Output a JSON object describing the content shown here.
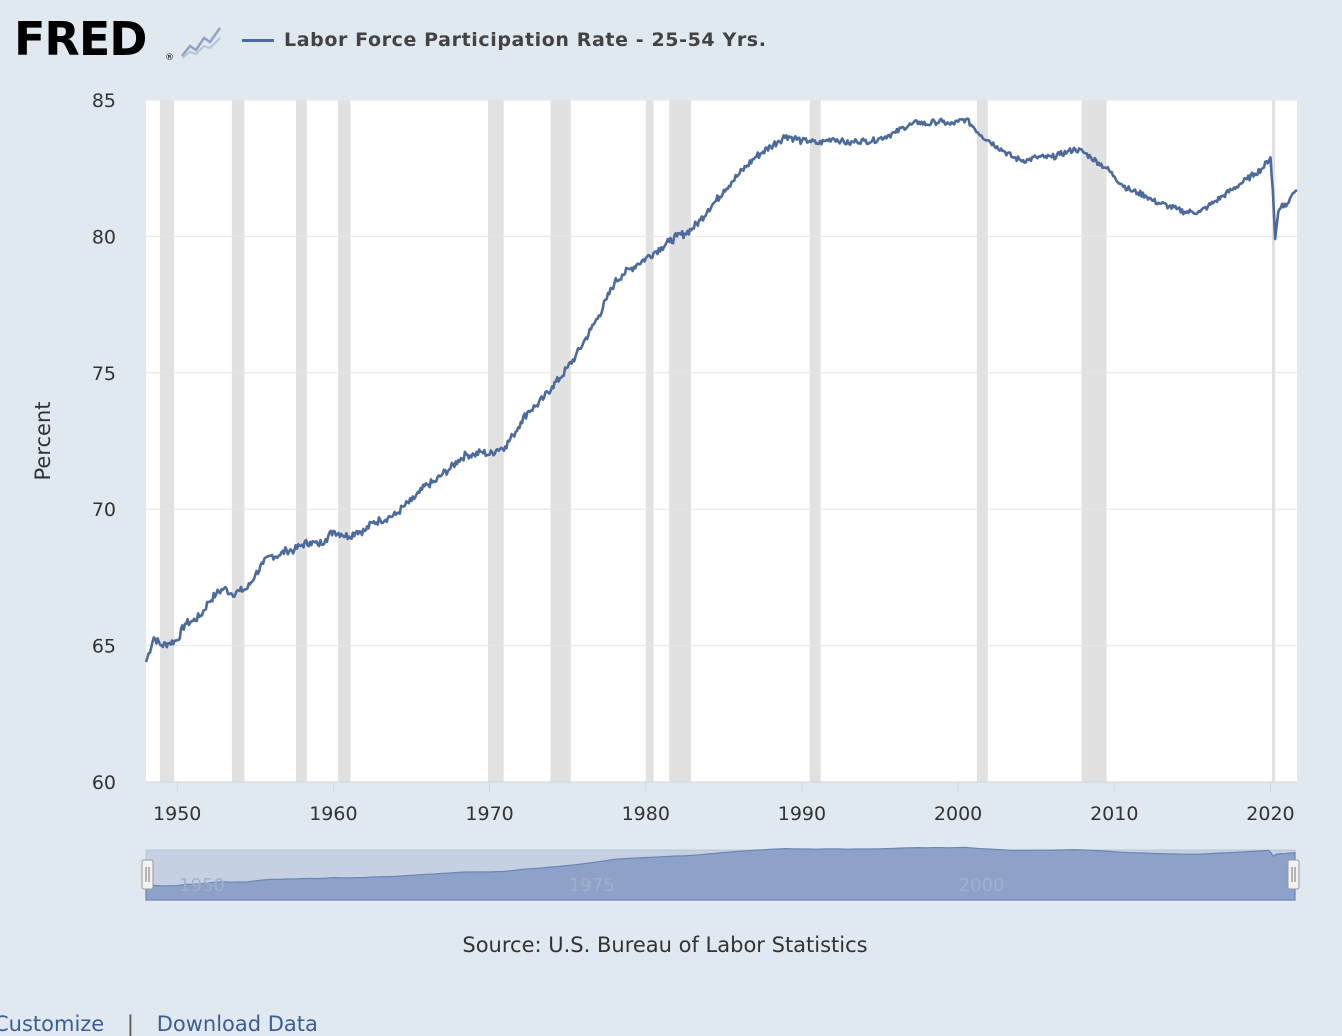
{
  "header": {
    "logo_text": "FRED",
    "logo_reg": "®",
    "logo_icon": "line-chart-icon",
    "legend_label": "Labor Force Participation Rate - 25-54 Yrs.",
    "legend_color": "#4c6b9c"
  },
  "source": "Source: U.S. Bureau of Labor Statistics",
  "footer": {
    "customize": "Customize",
    "separator": "|",
    "download": "Download Data"
  },
  "navigator": {
    "tick_labels": [
      "1950",
      "1975",
      "2000"
    ],
    "handle_glyph": "||"
  },
  "chart_data": {
    "type": "line",
    "title": "",
    "xlabel": "",
    "ylabel": "Percent",
    "ylim": [
      60,
      85
    ],
    "xlim": [
      1948,
      2021.7
    ],
    "y_ticks": [
      60,
      65,
      70,
      75,
      80,
      85
    ],
    "x_ticks": [
      1950,
      1960,
      1970,
      1980,
      1990,
      2000,
      2010,
      2020
    ],
    "grid": true,
    "legend_position": "top-left",
    "line_color": "#4c6b9c",
    "recession_color": "#e1e1e1",
    "recessions": [
      [
        1948.9,
        1949.8
      ],
      [
        1953.5,
        1954.3
      ],
      [
        1957.6,
        1958.3
      ],
      [
        1960.3,
        1961.1
      ],
      [
        1969.9,
        1970.9
      ],
      [
        1973.9,
        1975.2
      ],
      [
        1980.0,
        1980.5
      ],
      [
        1981.5,
        1982.9
      ],
      [
        1990.5,
        1991.2
      ],
      [
        2001.2,
        2001.9
      ],
      [
        2007.9,
        2009.5
      ],
      [
        2020.1,
        2020.3
      ]
    ],
    "series": [
      {
        "name": "Labor Force Participation Rate - 25-54 Yrs.",
        "x": [
          1948.0,
          1948.5,
          1949.0,
          1949.5,
          1950.0,
          1950.5,
          1951.0,
          1951.5,
          1952.0,
          1952.5,
          1953.0,
          1953.5,
          1954.0,
          1954.5,
          1955.0,
          1955.5,
          1956.0,
          1956.5,
          1957.0,
          1957.5,
          1958.0,
          1958.5,
          1959.0,
          1959.5,
          1960.0,
          1960.5,
          1961.0,
          1961.5,
          1962.0,
          1962.5,
          1963.0,
          1963.5,
          1964.0,
          1964.5,
          1965.0,
          1965.5,
          1966.0,
          1966.5,
          1967.0,
          1967.5,
          1968.0,
          1968.5,
          1969.0,
          1969.5,
          1970.0,
          1970.5,
          1971.0,
          1971.5,
          1972.0,
          1972.5,
          1973.0,
          1973.5,
          1974.0,
          1974.5,
          1975.0,
          1975.5,
          1976.0,
          1976.5,
          1977.0,
          1977.5,
          1978.0,
          1978.5,
          1979.0,
          1979.5,
          1980.0,
          1980.5,
          1981.0,
          1981.5,
          1982.0,
          1982.5,
          1983.0,
          1983.5,
          1984.0,
          1984.5,
          1985.0,
          1985.5,
          1986.0,
          1986.5,
          1987.0,
          1987.5,
          1988.0,
          1988.5,
          1989.0,
          1989.5,
          1990.0,
          1990.5,
          1991.0,
          1991.5,
          1992.0,
          1992.5,
          1993.0,
          1993.5,
          1994.0,
          1994.5,
          1995.0,
          1995.5,
          1996.0,
          1996.5,
          1997.0,
          1997.5,
          1998.0,
          1998.5,
          1999.0,
          1999.5,
          2000.0,
          2000.5,
          2001.0,
          2001.5,
          2002.0,
          2002.5,
          2003.0,
          2003.5,
          2004.0,
          2004.5,
          2005.0,
          2005.5,
          2006.0,
          2006.5,
          2007.0,
          2007.5,
          2008.0,
          2008.5,
          2009.0,
          2009.5,
          2010.0,
          2010.5,
          2011.0,
          2011.5,
          2012.0,
          2012.5,
          2013.0,
          2013.5,
          2014.0,
          2014.5,
          2015.0,
          2015.5,
          2016.0,
          2016.5,
          2017.0,
          2017.5,
          2018.0,
          2018.5,
          2019.0,
          2019.5,
          2020.0,
          2020.15,
          2020.3,
          2020.5,
          2020.75,
          2021.0,
          2021.25,
          2021.5,
          2021.7
        ],
        "values": [
          64.4,
          65.3,
          65.0,
          65.1,
          65.2,
          65.8,
          65.9,
          66.1,
          66.6,
          66.9,
          67.1,
          66.9,
          67.0,
          67.1,
          67.6,
          68.0,
          68.3,
          68.3,
          68.5,
          68.5,
          68.7,
          68.8,
          68.7,
          68.9,
          69.2,
          69.1,
          69.0,
          69.2,
          69.2,
          69.5,
          69.6,
          69.7,
          69.8,
          70.1,
          70.3,
          70.6,
          70.9,
          71.0,
          71.3,
          71.5,
          71.8,
          72.0,
          72.0,
          72.1,
          72.0,
          72.2,
          72.3,
          72.7,
          73.2,
          73.6,
          73.8,
          74.1,
          74.5,
          74.8,
          75.2,
          75.6,
          76.1,
          76.6,
          77.1,
          77.7,
          78.3,
          78.6,
          78.8,
          79.0,
          79.2,
          79.4,
          79.6,
          79.8,
          80.0,
          80.1,
          80.3,
          80.6,
          81.0,
          81.3,
          81.7,
          82.0,
          82.3,
          82.6,
          82.9,
          83.1,
          83.3,
          83.5,
          83.7,
          83.6,
          83.5,
          83.5,
          83.4,
          83.5,
          83.6,
          83.5,
          83.4,
          83.5,
          83.5,
          83.5,
          83.6,
          83.7,
          83.8,
          84.0,
          84.1,
          84.2,
          84.1,
          84.2,
          84.2,
          84.1,
          84.2,
          84.3,
          84.0,
          83.7,
          83.5,
          83.3,
          83.1,
          82.9,
          82.8,
          82.8,
          82.9,
          82.9,
          82.9,
          83.0,
          83.1,
          83.2,
          83.1,
          82.9,
          82.7,
          82.5,
          82.2,
          81.9,
          81.7,
          81.6,
          81.5,
          81.3,
          81.2,
          81.1,
          81.0,
          80.9,
          80.9,
          80.9,
          81.1,
          81.3,
          81.5,
          81.7,
          81.9,
          82.1,
          82.3,
          82.5,
          82.9,
          81.7,
          79.9,
          80.9,
          81.2,
          81.1,
          81.4,
          81.6,
          81.7
        ]
      }
    ]
  }
}
